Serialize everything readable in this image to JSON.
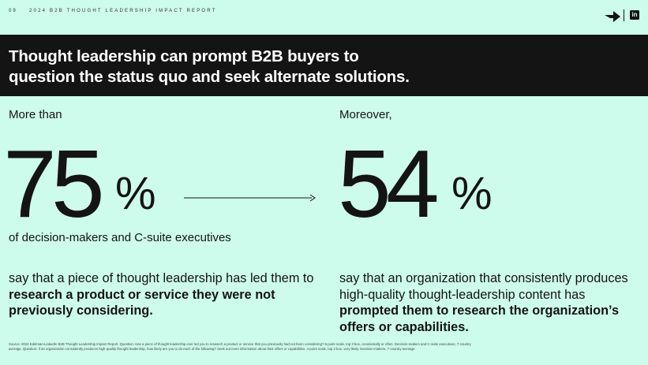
{
  "header": {
    "page_number": "09",
    "report_title": "2024 B2B THOUGHT LEADERSHIP IMPACT REPORT",
    "logo_icon": "arrow-logo-icon",
    "social_icon": "linkedin-icon",
    "social_glyph": "in"
  },
  "banner": {
    "line1": "Thought leadership can prompt B2B buyers to",
    "line2": "question the status quo and seek alternate solutions."
  },
  "left": {
    "lead": "More than",
    "number": "75",
    "percent_sign": "%",
    "subtext": "of decision-makers and C-suite executives",
    "para_1": "say that ",
    "para_2": "a piece of thought leadership has led them to ",
    "para_bold": "research a product or service they were not previously considering."
  },
  "right": {
    "lead": "Moreover,",
    "number": "54",
    "percent_sign": "%",
    "para_1": "say that ",
    "para_2": "an organization that consistently produces high-quality thought-leadership content has ",
    "para_bold": "prompted them to research the organization’s offers or capabilities."
  },
  "footnote": "Source: 2024 Edelman-LinkedIn B2B Thought Leadership Impact Report. Question: Has a piece of thought leadership ever led you to research a product or service that you previously had not been considering? 6-point scale, top 3 box, occasionally or often. Decision-makers and C-suite executives, 7-country average. Question: If an organization consistently produces high-quality thought leadership, how likely are you to do each of the following? Seek out more information about their offers or capabilities. 4-point scale, top 2 box, very likely. Decision-makers, 7-country average.",
  "colors": {
    "background": "#cdfbec",
    "banner": "#141414",
    "text": "#141414"
  }
}
